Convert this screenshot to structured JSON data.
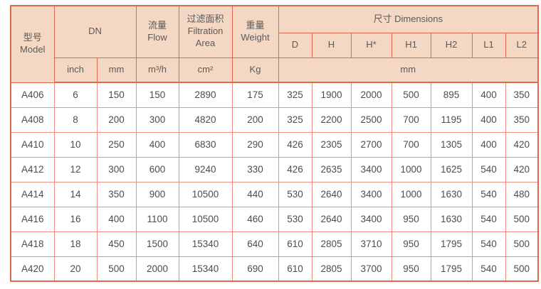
{
  "header": {
    "model_zh": "型号",
    "model_en": "Model",
    "dn": "DN",
    "flow_zh": "流量",
    "flow_en": "Flow",
    "area_zh": "过滤面积",
    "area_en": "Filtration Area",
    "weight_zh": "重量",
    "weight_en": "Weight",
    "dimensions": "尺寸 Dimensions",
    "dim_cols": [
      "D",
      "H",
      "H*",
      "H1",
      "H2",
      "L1",
      "L2"
    ],
    "units": {
      "inch": "inch",
      "mm": "mm",
      "flow": "m³/h",
      "area": "cm²",
      "weight": "Kg",
      "dims": "mm"
    }
  },
  "rows": [
    {
      "model": "A406",
      "values": [
        "6",
        "150",
        "150",
        "2890",
        "175",
        "325",
        "1900",
        "2000",
        "500",
        "895",
        "400",
        "350"
      ]
    },
    {
      "model": "A408",
      "values": [
        "8",
        "200",
        "300",
        "4820",
        "200",
        "325",
        "2200",
        "2500",
        "700",
        "1195",
        "400",
        "350"
      ]
    },
    {
      "model": "A410",
      "values": [
        "10",
        "250",
        "400",
        "6830",
        "290",
        "426",
        "2305",
        "2700",
        "700",
        "1305",
        "400",
        "420"
      ]
    },
    {
      "model": "A412",
      "values": [
        "12",
        "300",
        "600",
        "9240",
        "330",
        "426",
        "2635",
        "3400",
        "1000",
        "1625",
        "540",
        "420"
      ]
    },
    {
      "model": "A414",
      "values": [
        "14",
        "350",
        "900",
        "10500",
        "440",
        "530",
        "2640",
        "3400",
        "1000",
        "1630",
        "540",
        "480"
      ]
    },
    {
      "model": "A416",
      "values": [
        "16",
        "400",
        "1100",
        "10500",
        "460",
        "530",
        "2640",
        "3400",
        "950",
        "1630",
        "540",
        "500"
      ]
    },
    {
      "model": "A418",
      "values": [
        "18",
        "450",
        "1500",
        "15340",
        "640",
        "610",
        "2805",
        "3710",
        "950",
        "1795",
        "540",
        "500"
      ]
    },
    {
      "model": "A420",
      "values": [
        "20",
        "500",
        "2000",
        "15340",
        "690",
        "610",
        "2805",
        "3700",
        "950",
        "1795",
        "540",
        "500"
      ]
    }
  ],
  "colors": {
    "header_bg": "#f5d8c4",
    "border_strong": "#dc6a4e",
    "border_light": "#ee9080"
  }
}
